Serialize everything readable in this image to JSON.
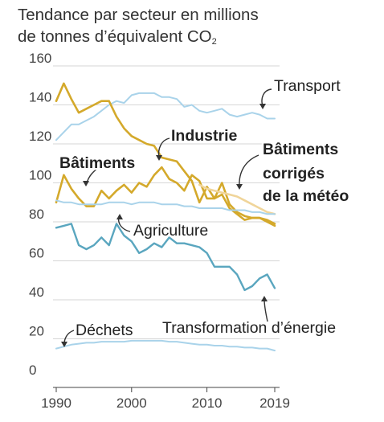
{
  "chart_data": {
    "type": "line",
    "title_line1": "Tendance par secteur en millions",
    "title_line2": "de tonnes d’équivalent CO",
    "title_sub": "2",
    "ylim": [
      0,
      160
    ],
    "yticks": [
      "0",
      "20",
      "40",
      "60",
      "80",
      "100",
      "120",
      "140",
      "160"
    ],
    "xlim": [
      1990,
      2019
    ],
    "xticks": [
      "1990",
      "2000",
      "2010",
      "2019"
    ],
    "grid": true,
    "series": [
      {
        "name": "Transport",
        "color": "#a9d3ea",
        "width": 2,
        "x": [
          1990,
          1991,
          1992,
          1993,
          1994,
          1995,
          1996,
          1997,
          1998,
          1999,
          2000,
          2001,
          2002,
          2003,
          2004,
          2005,
          2006,
          2007,
          2008,
          2009,
          2010,
          2011,
          2012,
          2013,
          2014,
          2015,
          2016,
          2017,
          2018,
          2019
        ],
        "values": [
          122,
          126,
          130,
          130,
          132,
          134,
          137,
          140,
          142,
          141,
          145,
          146,
          146,
          146,
          144,
          144,
          143,
          139,
          140,
          137,
          136,
          137,
          138,
          135,
          134,
          135,
          136,
          135,
          133,
          133
        ]
      },
      {
        "name": "Industrie",
        "color": "#d4a92b",
        "width": 2.6,
        "x": [
          1990,
          1991,
          1992,
          1993,
          1994,
          1995,
          1996,
          1997,
          1998,
          1999,
          2000,
          2001,
          2002,
          2003,
          2004,
          2005,
          2006,
          2007,
          2008,
          2009,
          2010,
          2011,
          2012,
          2013,
          2014,
          2015,
          2016,
          2017,
          2018,
          2019
        ],
        "values": [
          142,
          151,
          143,
          136,
          138,
          140,
          142,
          142,
          134,
          128,
          124,
          122,
          120,
          119,
          113,
          112,
          111,
          106,
          101,
          90,
          98,
          92,
          94,
          87,
          84,
          81,
          82,
          82,
          81,
          79
        ]
      },
      {
        "name": "Bâtiments",
        "color": "#d4a92b",
        "width": 2.6,
        "x": [
          1990,
          1991,
          1992,
          1993,
          1994,
          1995,
          1996,
          1997,
          1998,
          1999,
          2000,
          2001,
          2002,
          2003,
          2004,
          2005,
          2006,
          2007,
          2008,
          2009,
          2010,
          2011,
          2012,
          2013,
          2014,
          2015,
          2016,
          2017,
          2018,
          2019
        ],
        "values": [
          90,
          104,
          97,
          92,
          88,
          88,
          96,
          92,
          96,
          99,
          95,
          100,
          98,
          104,
          108,
          102,
          100,
          96,
          104,
          101,
          92,
          92,
          100,
          89,
          85,
          83,
          82,
          82,
          80,
          78
        ]
      },
      {
        "name": "Bâtiments corrigés de la météo",
        "color": "#f0d59a",
        "width": 2.6,
        "x": [
          2009,
          2010,
          2011,
          2012,
          2013,
          2014,
          2015,
          2016,
          2017,
          2018,
          2019
        ],
        "values": [
          99,
          97,
          96,
          95,
          94,
          93,
          91,
          89,
          87,
          85,
          84
        ]
      },
      {
        "name": "Agriculture",
        "color": "#a9d3ea",
        "width": 2,
        "x": [
          1990,
          1991,
          1992,
          1993,
          1994,
          1995,
          1996,
          1997,
          1998,
          1999,
          2000,
          2001,
          2002,
          2003,
          2004,
          2005,
          2006,
          2007,
          2008,
          2009,
          2010,
          2011,
          2012,
          2013,
          2014,
          2015,
          2016,
          2017,
          2018,
          2019
        ],
        "values": [
          91,
          90,
          90,
          89,
          89,
          89,
          89,
          90,
          90,
          90,
          89,
          90,
          90,
          90,
          89,
          89,
          89,
          88,
          88,
          87,
          87,
          87,
          87,
          86,
          86,
          86,
          85,
          85,
          84,
          84
        ]
      },
      {
        "name": "Transformation d’énergie",
        "color": "#5aa6bf",
        "width": 2.4,
        "x": [
          1990,
          1991,
          1992,
          1993,
          1994,
          1995,
          1996,
          1997,
          1998,
          1999,
          2000,
          2001,
          2002,
          2003,
          2004,
          2005,
          2006,
          2007,
          2008,
          2009,
          2010,
          2011,
          2012,
          2013,
          2014,
          2015,
          2016,
          2017,
          2018,
          2019
        ],
        "values": [
          77,
          78,
          79,
          68,
          66,
          68,
          72,
          68,
          79,
          73,
          70,
          64,
          66,
          69,
          67,
          72,
          69,
          69,
          68,
          67,
          64,
          57,
          57,
          57,
          53,
          45,
          47,
          51,
          53,
          46
        ]
      },
      {
        "name": "Déchets",
        "color": "#a9d3ea",
        "width": 2,
        "x": [
          1990,
          1991,
          1992,
          1993,
          1994,
          1995,
          1996,
          1997,
          1998,
          1999,
          2000,
          2001,
          2002,
          2003,
          2004,
          2005,
          2006,
          2007,
          2008,
          2009,
          2010,
          2011,
          2012,
          2013,
          2014,
          2015,
          2016,
          2017,
          2018,
          2019
        ],
        "values": [
          15,
          16,
          17,
          17.5,
          18,
          18,
          18.5,
          18.5,
          18.5,
          18.5,
          19,
          19,
          19,
          19,
          19,
          18.5,
          18.5,
          18,
          17.5,
          17,
          17,
          16.5,
          16.5,
          16,
          16,
          15.5,
          15.5,
          15,
          15,
          14
        ]
      }
    ],
    "labels": [
      {
        "text": "Transport",
        "bold": false
      },
      {
        "text": "Industrie",
        "bold": true
      },
      {
        "text": "Bâtiments",
        "bold": true
      },
      {
        "text": "Bâtiments",
        "bold": true
      },
      {
        "text": "corrigés",
        "bold": true
      },
      {
        "text": "de la météo",
        "bold": true
      },
      {
        "text": "Agriculture",
        "bold": false
      },
      {
        "text": "Transformation d’énergie",
        "bold": false
      },
      {
        "text": "Déchets",
        "bold": false
      }
    ]
  }
}
